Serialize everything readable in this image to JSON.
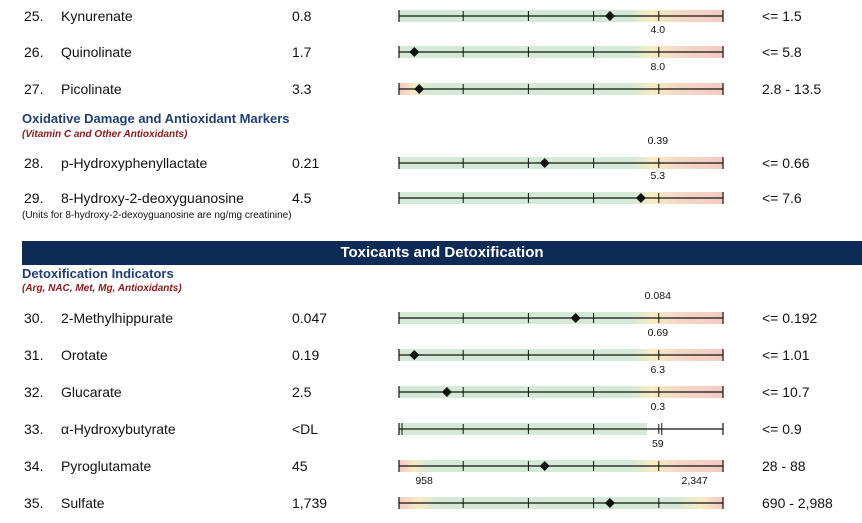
{
  "rows_top": [
    {
      "num": "25.",
      "name": "Kynurenate",
      "value": "0.8",
      "ref": "<= 1.5",
      "marker": 0.65,
      "green_end": 0.76,
      "label": "",
      "label_pos": 0.797,
      "dl": false,
      "cutoff": "upper"
    },
    {
      "num": "26.",
      "name": "Quinolinate",
      "value": "1.7",
      "ref": "<= 5.8",
      "marker": 0.05,
      "green_end": 0.76,
      "label": "4.0",
      "label_pos": 0.797,
      "dl": false,
      "cutoff": "upper"
    },
    {
      "num": "27.",
      "name": "Picolinate",
      "value": "3.3",
      "ref": "2.8 - 13.5",
      "marker": 0.065,
      "green_end": 0.76,
      "label": "8.0",
      "label_pos": 0.797,
      "dl": false,
      "cutoff": "range"
    }
  ],
  "oxidative": {
    "title": "Oxidative Damage and Antioxidant Markers",
    "subtitle": "(Vitamin C and Other Antioxidants)",
    "rows": [
      {
        "num": "28.",
        "name": "p-Hydroxyphenyllactate",
        "value": "0.21",
        "ref": "<= 0.66",
        "marker": 0.45,
        "green_end": 0.76,
        "label": "0.39",
        "label_pos": 0.797,
        "dl": false,
        "cutoff": "upper"
      },
      {
        "num": "29.",
        "name": "8-Hydroxy-2-deoxyguanosine",
        "value": "4.5",
        "ref": "<= 7.6",
        "marker": 0.745,
        "green_end": 0.76,
        "label": "5.3",
        "label_pos": 0.797,
        "dl": false,
        "cutoff": "upper"
      }
    ],
    "note": "(Units for 8-hydroxy-2-dexoyguanosine are ng/mg creatinine)"
  },
  "banner": "Toxicants and Detoxification",
  "detox": {
    "title": "Detoxification Indicators",
    "subtitle": "(Arg, NAC, Met, Mg, Antioxidants)",
    "rows": [
      {
        "num": "30.",
        "name": "2-Methylhippurate",
        "value": "0.047",
        "ref": "<= 0.192",
        "marker": 0.545,
        "green_end": 0.76,
        "label": "0.084",
        "label_pos": 0.797,
        "dl": false,
        "cutoff": "upper"
      },
      {
        "num": "31.",
        "name": "Orotate",
        "value": "0.19",
        "ref": "<= 1.01",
        "marker": 0.05,
        "green_end": 0.76,
        "label": "0.69",
        "label_pos": 0.797,
        "dl": false,
        "cutoff": "upper"
      },
      {
        "num": "32.",
        "name": "Glucarate",
        "value": "2.5",
        "ref": "<= 10.7",
        "marker": 0.15,
        "green_end": 0.76,
        "label": "6.3",
        "label_pos": 0.797,
        "dl": false,
        "cutoff": "upper"
      },
      {
        "num": "33.",
        "name": "α-Hydroxybutyrate",
        "value": "<DL",
        "ref": "<= 0.9",
        "marker": null,
        "green_end": 0.76,
        "label": "0.3",
        "label_pos": 0.797,
        "dl": true,
        "cutoff": "upper"
      },
      {
        "num": "34.",
        "name": "Pyroglutamate",
        "value": "45",
        "ref": "28 - 88",
        "marker": 0.45,
        "green_end": 0.76,
        "label": "59",
        "label_pos": 0.797,
        "dl": false,
        "cutoff": "range"
      },
      {
        "num": "35.",
        "name": "Sulfate",
        "value": "1,739",
        "ref": "690 - 2,988",
        "marker": 0.65,
        "green_end": 0.76,
        "label": "2,347",
        "label_pos": 0.91,
        "label_low": "958",
        "label_low_pos": 0.08,
        "dl": false,
        "cutoff": "sulfate"
      }
    ]
  }
}
